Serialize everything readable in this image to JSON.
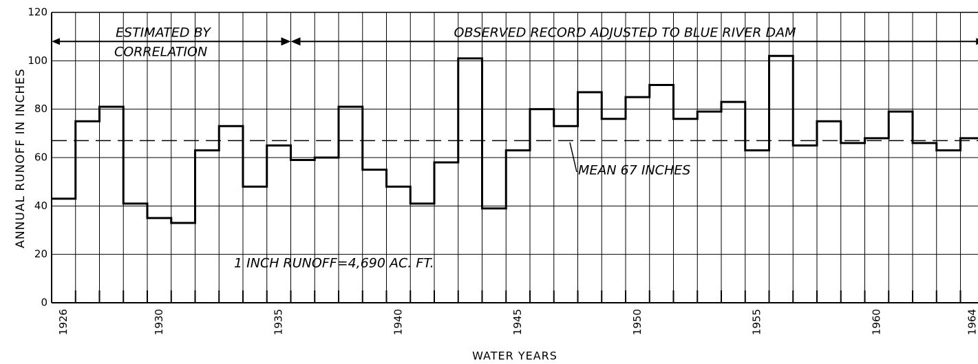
{
  "chart_data": {
    "type": "step",
    "y_label": "ANNUAL RUNOFF IN INCHES",
    "x_label": "WATER YEARS",
    "annotations": [
      "ESTIMATED BY",
      "CORRELATION",
      "OBSERVED RECORD ADJUSTED TO BLUE RIVER DAM",
      "MEAN 67 INCHES",
      "1 INCH RUNOFF=4,690 AC. FT."
    ],
    "x": [
      1926,
      1927,
      1928,
      1929,
      1930,
      1931,
      1932,
      1933,
      1934,
      1935,
      1936,
      1937,
      1938,
      1939,
      1940,
      1941,
      1942,
      1943,
      1944,
      1945,
      1946,
      1947,
      1948,
      1949,
      1950,
      1951,
      1952,
      1953,
      1954,
      1955,
      1956,
      1957,
      1958,
      1959,
      1960,
      1961,
      1962,
      1963,
      1964
    ],
    "values": [
      43,
      75,
      81,
      41,
      35,
      33,
      63,
      73,
      48,
      65,
      59,
      60,
      81,
      55,
      48,
      41,
      58,
      101,
      39,
      63,
      80,
      73,
      87,
      76,
      85,
      90,
      76,
      79,
      83,
      63,
      102,
      65,
      75,
      66,
      68,
      79,
      66,
      63,
      68
    ],
    "color": "#000000",
    "mean": 67,
    "xlim": [
      1925.5,
      1964.5
    ],
    "xticks": [
      1926,
      1930,
      1935,
      1940,
      1945,
      1950,
      1955,
      1960,
      1964
    ],
    "ylim": [
      0,
      120
    ],
    "yticks": [
      0,
      20,
      40,
      60,
      80,
      100,
      120
    ],
    "grid": true
  }
}
